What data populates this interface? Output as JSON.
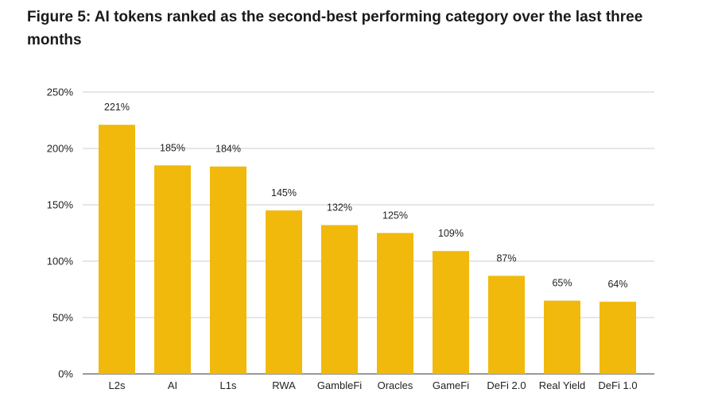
{
  "figure": {
    "title": "Figure 5: AI tokens ranked as the second-best performing category over the last three months"
  },
  "chart_data": {
    "type": "bar",
    "categories": [
      "L2s",
      "AI",
      "L1s",
      "RWA",
      "GambleFi",
      "Oracles",
      "GameFi",
      "DeFi 2.0",
      "Real Yield",
      "DeFi 1.0"
    ],
    "values": [
      221,
      185,
      184,
      145,
      132,
      125,
      109,
      87,
      65,
      64
    ],
    "data_labels": [
      "221%",
      "185%",
      "184%",
      "145%",
      "132%",
      "125%",
      "109%",
      "87%",
      "65%",
      "64%"
    ],
    "y_ticks": [
      0,
      50,
      100,
      150,
      200,
      250
    ],
    "y_tick_labels": [
      "0%",
      "50%",
      "100%",
      "150%",
      "200%",
      "250%"
    ],
    "ylim": [
      0,
      250
    ],
    "xlabel": "",
    "ylabel": "",
    "grid": true,
    "legend": "none",
    "bar_color": "#f0b90b",
    "grid_color": "#cccccc"
  }
}
